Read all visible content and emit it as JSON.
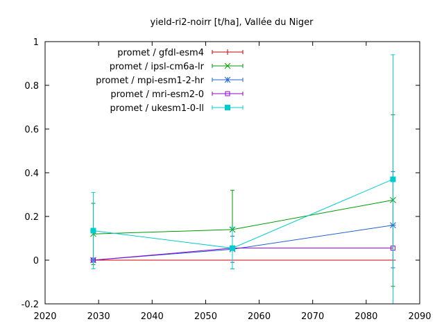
{
  "chart_data": {
    "type": "line",
    "title": "yield-ri2-noirr [t/ha], Vallée du Niger",
    "xlabel": "",
    "ylabel": "",
    "xlim": [
      2020,
      2090
    ],
    "ylim": [
      -0.2,
      1
    ],
    "xticks": [
      2020,
      2030,
      2040,
      2050,
      2060,
      2070,
      2080,
      2090
    ],
    "yticks": [
      -0.2,
      0,
      0.2,
      0.4,
      0.6,
      0.8,
      1
    ],
    "ytick_labels": [
      "-0.2",
      "0",
      "0.2",
      "0.4",
      "0.6",
      "0.8",
      "1"
    ],
    "grid": false,
    "legend_position": "top-left",
    "series": [
      {
        "name": "promet / gfdl-esm4",
        "color": "#cc0000",
        "marker": "plus",
        "x": [
          2029,
          2055,
          2085
        ],
        "y": [
          0,
          0,
          0
        ],
        "err_low": [
          0,
          0,
          0
        ],
        "err_high": [
          0,
          0,
          0
        ]
      },
      {
        "name": "promet / ipsl-cm6a-lr",
        "color": "#009900",
        "marker": "x",
        "x": [
          2029,
          2055,
          2085
        ],
        "y": [
          0.12,
          0.14,
          0.275
        ],
        "err_low": [
          -0.02,
          -0.04,
          -0.12
        ],
        "err_high": [
          0.26,
          0.32,
          0.665
        ]
      },
      {
        "name": "promet / mpi-esm1-2-hr",
        "color": "#1e5fd0",
        "marker": "star",
        "x": [
          2029,
          2055,
          2085
        ],
        "y": [
          0,
          0.05,
          0.16
        ],
        "err_low": [
          0,
          -0.01,
          -0.035
        ],
        "err_high": [
          0,
          0.11,
          0.405
        ]
      },
      {
        "name": "promet / mri-esm2-0",
        "color": "#9400d3",
        "marker": "square-open",
        "x": [
          2029,
          2055,
          2085
        ],
        "y": [
          0,
          0.055,
          0.055
        ],
        "err_low": [
          0,
          0.055,
          0.055
        ],
        "err_high": [
          0,
          0.055,
          0.055
        ]
      },
      {
        "name": "promet / ukesm1-0-ll",
        "color": "#00cccc",
        "marker": "square-filled",
        "x": [
          2029,
          2055,
          2085
        ],
        "y": [
          0.135,
          0.055,
          0.37
        ],
        "err_low": [
          -0.04,
          -0.04,
          -0.2
        ],
        "err_high": [
          0.31,
          0.15,
          0.94
        ]
      }
    ]
  }
}
